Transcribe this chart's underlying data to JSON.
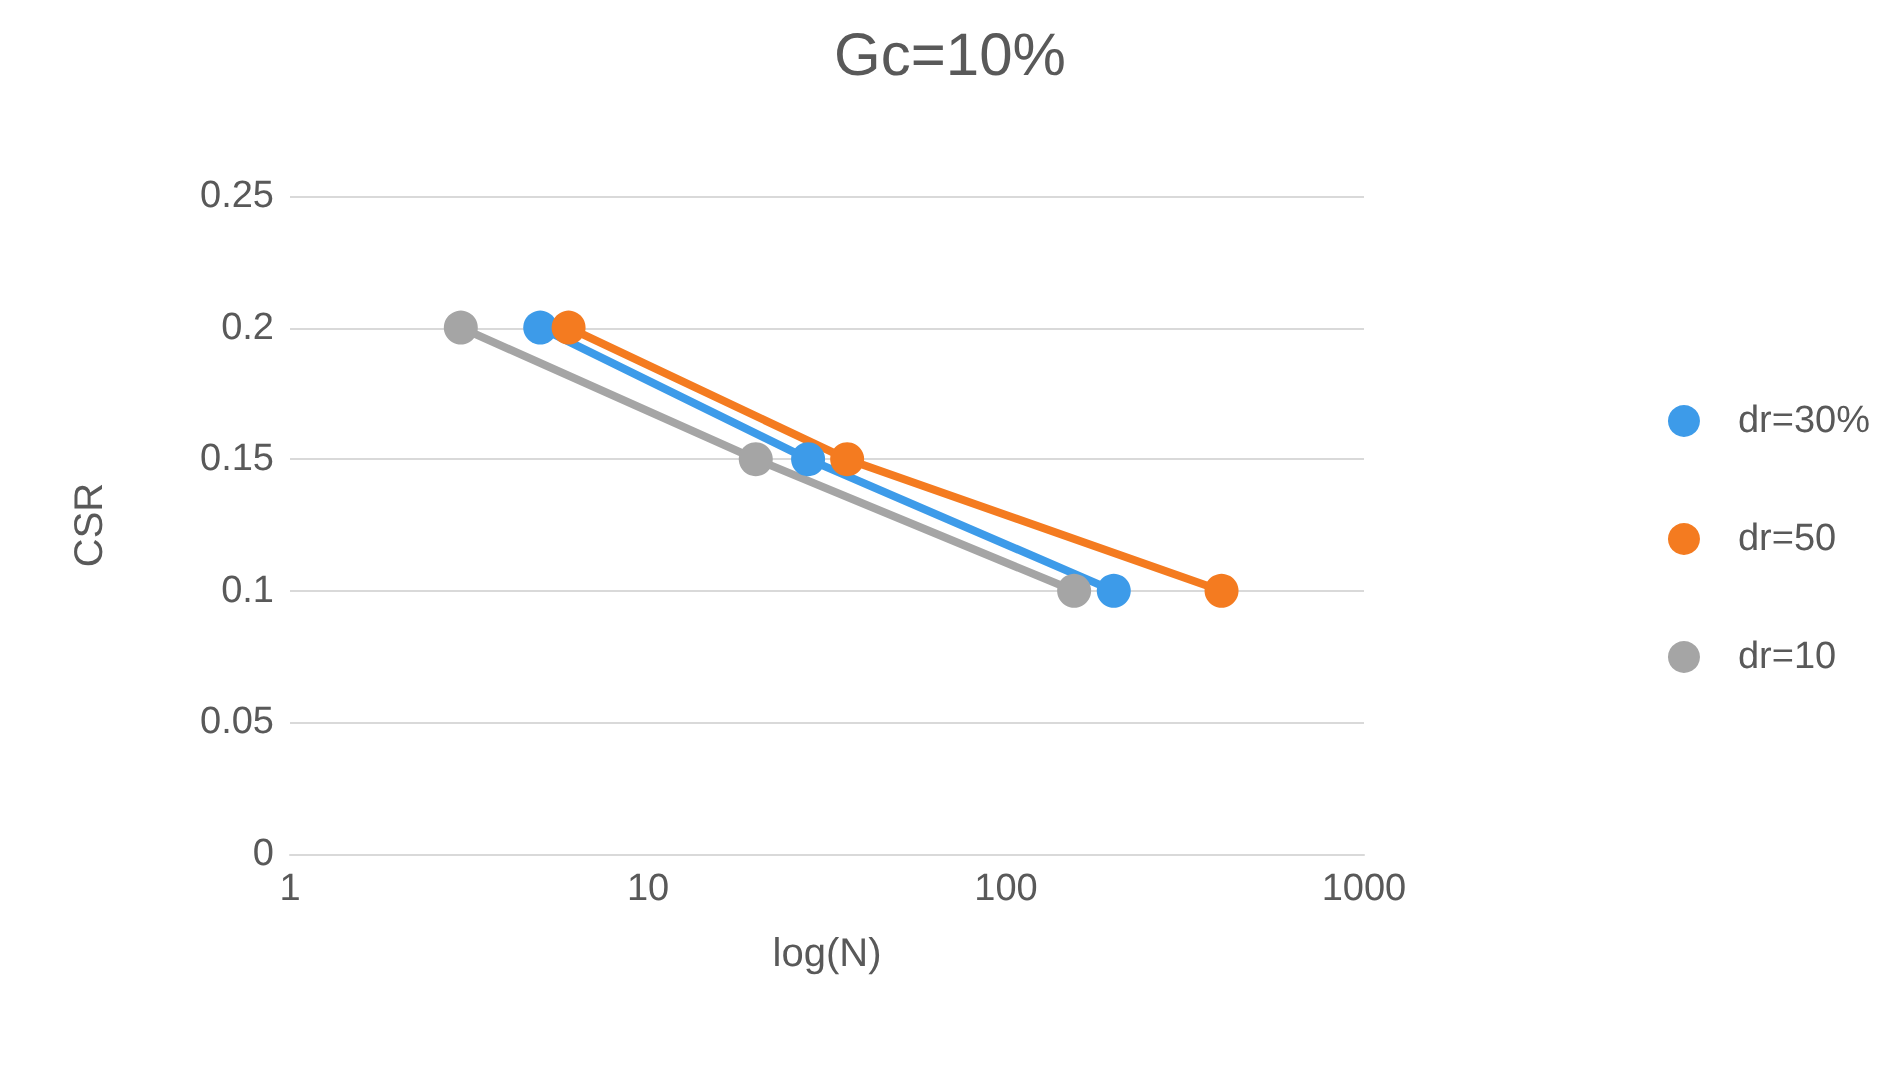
{
  "chart_data": {
    "type": "line",
    "title": "Gc=10%",
    "xlabel": "log(N)",
    "ylabel": "CSR",
    "log": "x",
    "xlim": [
      1,
      1000
    ],
    "xticks": [
      1,
      10,
      100,
      1000
    ],
    "ylim": [
      0,
      0.25
    ],
    "yticks": [
      0,
      0.05,
      0.1,
      0.15,
      0.2,
      0.25
    ],
    "grid": "y",
    "legend": "right",
    "marker": "circle",
    "line_style": "solid",
    "series": [
      {
        "name": "dr=30%",
        "color": "#3d9be9",
        "x": [
          5,
          28,
          200
        ],
        "values": [
          0.2,
          0.15,
          0.1
        ]
      },
      {
        "name": "dr=50",
        "color": "#f47b20",
        "x": [
          6,
          36,
          400
        ],
        "values": [
          0.2,
          0.15,
          0.1
        ]
      },
      {
        "name": "dr=10",
        "color": "#a5a5a5",
        "x": [
          3,
          20,
          155
        ],
        "values": [
          0.2,
          0.15,
          0.1
        ]
      }
    ]
  }
}
